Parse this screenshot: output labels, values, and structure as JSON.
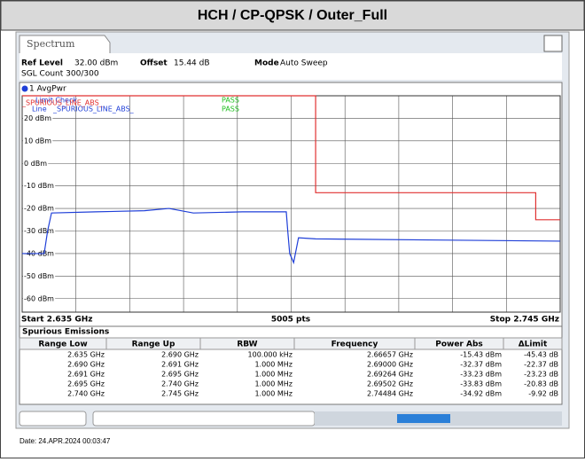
{
  "header": {
    "title": "HCH / CP-QPSK / Outer_Full"
  },
  "tab": "Spectrum",
  "settings": {
    "ref_level_label": "Ref Level",
    "ref_level": "32.00 dBm",
    "offset_label": "Offset",
    "offset": "15.44 dB",
    "mode_label": "Mode",
    "mode": "Auto Sweep",
    "sgl_count": "SGL Count 300/300"
  },
  "trace_label": "1 AvgPwr",
  "limit_check": {
    "title": "Limit Check",
    "result": "PASS",
    "line_label": "Line",
    "line_name": "_SPURIOUS_LINE_ABS_",
    "line_result": "PASS"
  },
  "chart_data": {
    "type": "line",
    "xlim": [
      2.635,
      2.745
    ],
    "xticks": [
      2.635,
      2.646,
      2.657,
      2.668,
      2.679,
      2.69,
      2.701,
      2.712,
      2.723,
      2.734,
      2.745
    ],
    "ylim": [
      -66,
      30
    ],
    "yticks": [
      {
        "value": 20,
        "label": "20 dBm"
      },
      {
        "value": 10,
        "label": "10 dBm"
      },
      {
        "value": 0,
        "label": "0 dBm"
      },
      {
        "value": -10,
        "label": "-10 dBm"
      },
      {
        "value": -20,
        "label": "-20 dBm"
      },
      {
        "value": -30,
        "label": "-30 dBm"
      },
      {
        "value": -40,
        "label": "-40 dBm"
      },
      {
        "value": -50,
        "label": "-50 dBm"
      },
      {
        "value": -60,
        "label": "-60 dBm"
      }
    ],
    "grid": true,
    "start_label": "Start 2.635 GHz",
    "points_label": "5005 pts",
    "stop_label": "Stop 2.745 GHz",
    "series": [
      {
        "name": "1 AvgPwr",
        "color": "#1f3fd8",
        "x": [
          2.635,
          2.6395,
          2.6402,
          2.641,
          2.65,
          2.66,
          2.665,
          2.67,
          2.68,
          2.689,
          2.6893,
          2.6897,
          2.6905,
          2.6915,
          2.695,
          2.72,
          2.745
        ],
        "values": [
          -40,
          -40,
          -30,
          -22,
          -21.5,
          -21,
          -20,
          -22,
          -21.5,
          -21.5,
          -30,
          -40,
          -44,
          -33,
          -33.5,
          -34,
          -34.5
        ]
      },
      {
        "name": "_SPURIOUS_LINE_ABS_",
        "color": "#e03030",
        "x": [
          2.635,
          2.695,
          2.695,
          2.74,
          2.74,
          2.745
        ],
        "values": [
          30,
          30,
          -13,
          -13,
          -25,
          -25
        ]
      }
    ]
  },
  "table": {
    "title": "Spurious Emissions",
    "headers": [
      "Range Low",
      "Range Up",
      "RBW",
      "Frequency",
      "Power Abs",
      "ΔLimit"
    ],
    "rows": [
      [
        "2.635 GHz",
        "2.690 GHz",
        "100.000 kHz",
        "2.66657 GHz",
        "-15.43 dBm",
        "-45.43 dB"
      ],
      [
        "2.690 GHz",
        "2.691 GHz",
        "1.000 MHz",
        "2.69000 GHz",
        "-32.37 dBm",
        "-22.37 dB"
      ],
      [
        "2.691 GHz",
        "2.695 GHz",
        "1.000 MHz",
        "2.69264 GHz",
        "-33.23 dBm",
        "-23.23 dB"
      ],
      [
        "2.695 GHz",
        "2.740 GHz",
        "1.000 MHz",
        "2.69502 GHz",
        "-33.83 dBm",
        "-20.83 dB"
      ],
      [
        "2.740 GHz",
        "2.745 GHz",
        "1.000 MHz",
        "2.74484 GHz",
        "-34.92 dBm",
        "-9.92 dB"
      ]
    ]
  },
  "footer": {
    "date": "Date: 24.APR.2024  00:03:47"
  }
}
